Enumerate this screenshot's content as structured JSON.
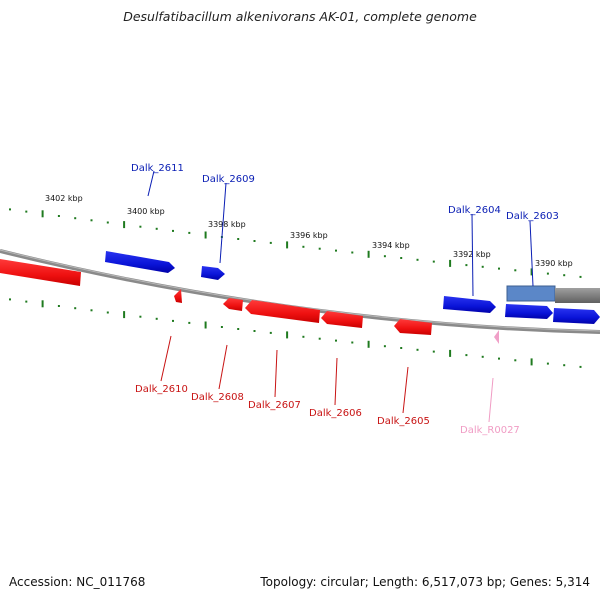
{
  "title": "Desulfatibacillum alkenivorans AK-01, complete genome",
  "footer": {
    "accession": "Accession: NC_011768",
    "summary": "Topology: circular; Length: 6,517,073 bp; Genes: 5,314"
  },
  "colors": {
    "forward_gene": "#0a14d8",
    "reverse_gene": "#ee1010",
    "rna_gene": "#f0a0c8",
    "tick": "#1f7a1f",
    "backbone": "#8a8a8a",
    "forward_label": "#0a1eb4",
    "reverse_label": "#c81414",
    "rna_label": "#f09cc4"
  },
  "scale_labels": [
    {
      "text": "3402 kbp",
      "kbp": 3402
    },
    {
      "text": "3400 kbp",
      "kbp": 3400
    },
    {
      "text": "3398 kbp",
      "kbp": 3398
    },
    {
      "text": "3396 kbp",
      "kbp": 3396
    },
    {
      "text": "3394 kbp",
      "kbp": 3394
    },
    {
      "text": "3392 kbp",
      "kbp": 3392
    },
    {
      "text": "3390 kbp",
      "kbp": 3390
    }
  ],
  "gene_labels": [
    {
      "text": "Dalk_2611",
      "strand": "forward"
    },
    {
      "text": "Dalk_2609",
      "strand": "forward"
    },
    {
      "text": "Dalk_2604",
      "strand": "forward"
    },
    {
      "text": "Dalk_2603",
      "strand": "forward"
    },
    {
      "text": "Dalk_2610",
      "strand": "reverse"
    },
    {
      "text": "Dalk_2608",
      "strand": "reverse"
    },
    {
      "text": "Dalk_2607",
      "strand": "reverse"
    },
    {
      "text": "Dalk_2606",
      "strand": "reverse"
    },
    {
      "text": "Dalk_2605",
      "strand": "reverse"
    },
    {
      "text": "Dalk_R0027",
      "strand": "rna"
    }
  ]
}
